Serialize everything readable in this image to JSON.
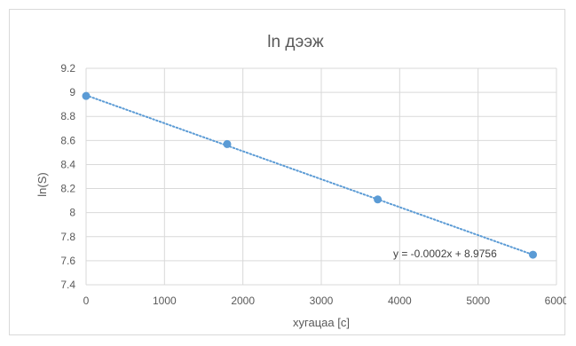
{
  "chart_data": {
    "type": "scatter",
    "title": "ln дээж",
    "xlabel": "хугацаа [с]",
    "ylabel": "ln(S)",
    "xlim": [
      0,
      6000
    ],
    "ylim": [
      7.4,
      9.2
    ],
    "x_ticks": [
      0,
      1000,
      2000,
      3000,
      4000,
      5000,
      6000
    ],
    "y_ticks": [
      7.4,
      7.6,
      7.8,
      8,
      8.2,
      8.4,
      8.6,
      8.8,
      9,
      9.2
    ],
    "x_tick_labels": [
      "0",
      "1000",
      "2000",
      "3000",
      "4000",
      "5000",
      "6000"
    ],
    "y_tick_labels": [
      "7.4",
      "7.6",
      "7.8",
      "8",
      "8.2",
      "8.4",
      "8.6",
      "8.8",
      "9",
      "9.2"
    ],
    "grid": true,
    "legend": "none",
    "series": [
      {
        "x": [
          0,
          1800,
          3720,
          5700
        ],
        "y": [
          8.97,
          8.57,
          8.11,
          7.65
        ],
        "color": "#5b9bd5",
        "marker": "circle"
      }
    ],
    "trendline": {
      "type": "linear",
      "style": "dotted",
      "color": "#5b9bd5",
      "slope": -0.0002,
      "intercept": 8.9756,
      "x_range": [
        0,
        5700
      ],
      "y_range": [
        8.9756,
        7.65
      ],
      "equation_label": "y = -0.0002x + 8.9756"
    }
  }
}
